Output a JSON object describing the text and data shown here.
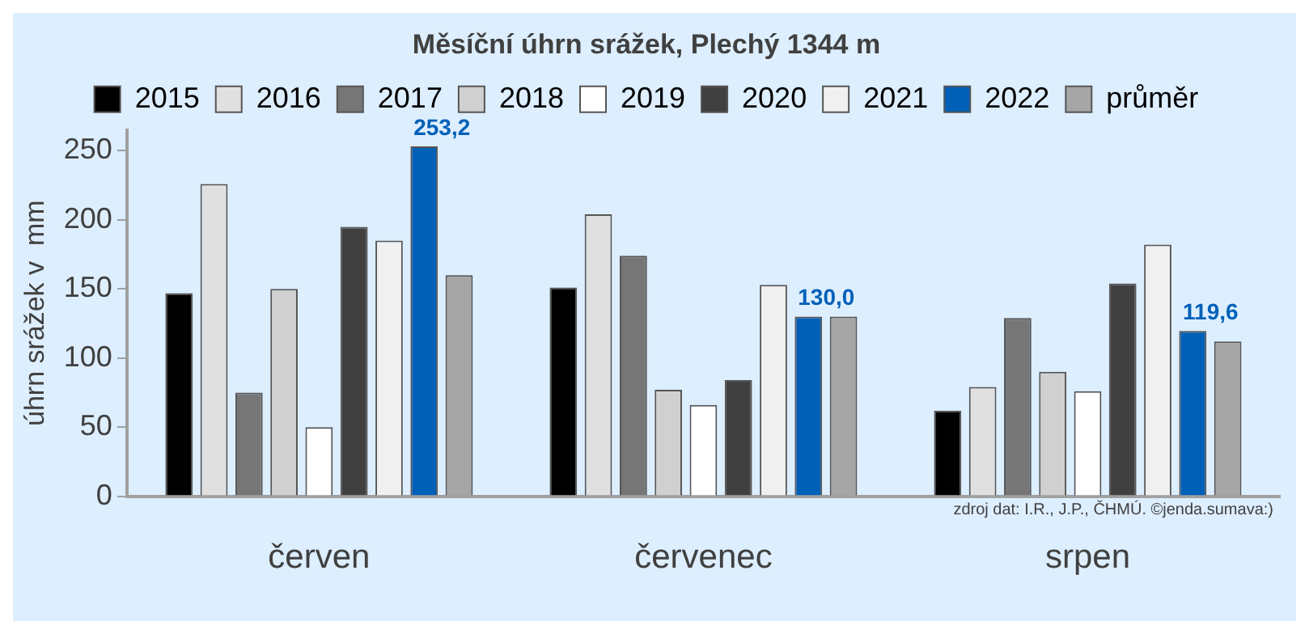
{
  "chart_data": {
    "type": "bar",
    "title": "Měsíční úhrn srážek, Plechý 1344 m",
    "ylabel": "úhrn srážek v  mm",
    "categories": [
      "červen",
      "červenec",
      "srpen"
    ],
    "series": [
      {
        "name": "2015",
        "color": "#000000",
        "values": [
          147,
          151,
          62
        ]
      },
      {
        "name": "2016",
        "color": "#e0e0e0",
        "values": [
          226,
          204,
          79
        ]
      },
      {
        "name": "2017",
        "color": "#767676",
        "values": [
          75,
          174,
          129
        ]
      },
      {
        "name": "2018",
        "color": "#d0d0d0",
        "values": [
          150,
          77,
          90
        ]
      },
      {
        "name": "2019",
        "color": "#ffffff",
        "values": [
          50,
          66,
          76
        ]
      },
      {
        "name": "2020",
        "color": "#404040",
        "values": [
          195,
          84,
          154
        ]
      },
      {
        "name": "2021",
        "color": "#f0f0f0",
        "values": [
          185,
          153,
          182
        ]
      },
      {
        "name": "2022",
        "color": "#0060b8",
        "values": [
          253.2,
          130.0,
          119.6
        ],
        "value_labels": [
          "253,2",
          "130,0",
          "119,6"
        ]
      },
      {
        "name": "průměr",
        "color": "#a6a6a6",
        "values": [
          160,
          130,
          112
        ]
      }
    ],
    "ylim": [
      0,
      265
    ],
    "yticks": [
      0,
      50,
      100,
      150,
      200,
      250
    ],
    "grid": false,
    "legend": "top",
    "annotations": [
      "zdroj dat: I.R., J.P., ČHMÚ. ©jenda.sumava:)"
    ]
  }
}
